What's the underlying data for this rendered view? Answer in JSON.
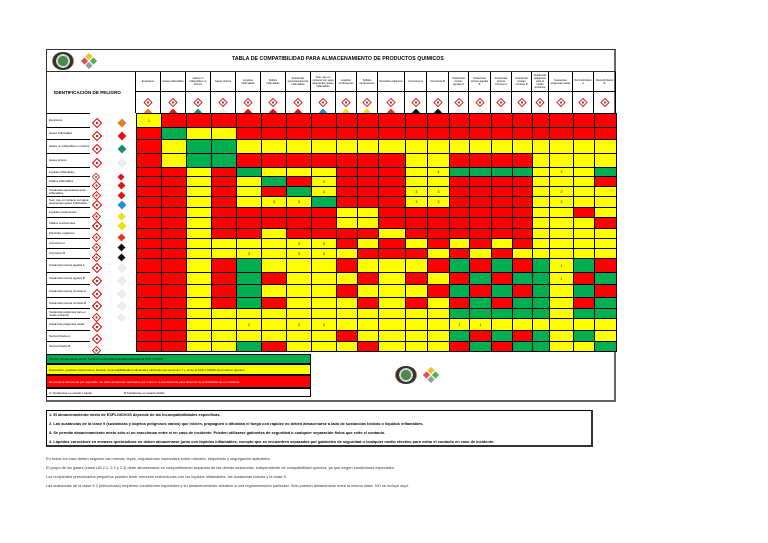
{
  "title": "TABLA DE COMPATIBILIDAD PARA ALMACENAMIENTO DE PRODUCTOS QUIMICOS",
  "header_label": "IDENTIFICACIÓN DE PELIGRO",
  "colors": {
    "R": "#ff0000",
    "Y": "#ffff00",
    "G": "#00b050"
  },
  "classes": [
    {
      "label": "Explosivos",
      "ghs": "exploding-bomb",
      "un": "orange"
    },
    {
      "label": "Gases inflamables",
      "ghs": "flame",
      "un": "red"
    },
    {
      "label": "Gases no inflamables no tóxicos",
      "ghs": "gas-cylinder",
      "un": "green"
    },
    {
      "label": "Gases tóxicos",
      "ghs": "skull",
      "un": "white"
    },
    {
      "label": "Líquidos inflamables",
      "ghs": "flame",
      "un": "red"
    },
    {
      "label": "Sólidos inflamables",
      "ghs": "flame",
      "un": "red-white"
    },
    {
      "label": "Sustancias espontáneamente inflamables",
      "ghs": "flame",
      "un": "white-red"
    },
    {
      "label": "Sust. que en contacto con agua desprenden gases inflamables",
      "ghs": "flame",
      "un": "blue"
    },
    {
      "label": "Líquidos comburentes",
      "ghs": "flame-over-circle",
      "un": "yellow"
    },
    {
      "label": "Sólidos comburentes",
      "ghs": "flame-over-circle",
      "un": "yellow"
    },
    {
      "label": "Peróxidos orgánicos",
      "ghs": "flame",
      "un": "red-yellow"
    },
    {
      "label": "Corrosivos A",
      "ghs": "corrosion",
      "un": "black-white"
    },
    {
      "label": "Corrosivos B",
      "ghs": "corrosion",
      "un": "black-white"
    },
    {
      "label": "Sustancias tóxicas agudas A",
      "ghs": "skull",
      "un": "white"
    },
    {
      "label": "Sustancias tóxicas agudas B",
      "ghs": "skull",
      "un": "white"
    },
    {
      "label": "Sustancias tóxicas crónicas A",
      "ghs": "health-hazard",
      "un": "white"
    },
    {
      "label": "Sustancias tóxicas crónicas B",
      "ghs": "health-hazard",
      "un": "white"
    },
    {
      "label": "Sustancias peligrosas para el medio ambiente",
      "ghs": "environment",
      "un": "environment"
    },
    {
      "label": "Sustancias peligrosas varias",
      "ghs": "class9",
      "un": "none"
    },
    {
      "label": "Nocivo/irritante A",
      "ghs": "exclamation",
      "un": "none"
    },
    {
      "label": "Nocivo/irritante B",
      "ghs": "exclamation",
      "un": "none"
    }
  ],
  "matrix": [
    [
      "Y1",
      "R",
      "R",
      "R",
      "R",
      "R",
      "R",
      "R",
      "R",
      "R",
      "R",
      "R",
      "R",
      "R",
      "R",
      "R",
      "R",
      "R",
      "R",
      "R",
      "R"
    ],
    [
      "R",
      "G",
      "Y",
      "Y",
      "R",
      "R",
      "R",
      "R",
      "R",
      "R",
      "R",
      "R",
      "R",
      "R",
      "R",
      "R",
      "R",
      "R",
      "R",
      "R",
      "R"
    ],
    [
      "R",
      "Y",
      "G",
      "G",
      "Y",
      "Y",
      "Y",
      "Y",
      "Y",
      "Y",
      "Y",
      "Y",
      "Y",
      "Y",
      "Y",
      "Y",
      "Y",
      "Y",
      "Y",
      "Y",
      "Y"
    ],
    [
      "R",
      "Y",
      "G",
      "G",
      "R",
      "R",
      "R",
      "R",
      "R",
      "R",
      "R",
      "Y",
      "Y",
      "R",
      "R",
      "R",
      "R",
      "Y",
      "Y",
      "Y",
      "Y"
    ],
    [
      "R",
      "R",
      "Y",
      "R",
      "G",
      "Y",
      "Y",
      "Y",
      "R",
      "R",
      "R",
      "Y",
      "Y4",
      "G",
      "G",
      "G",
      "G",
      "Y",
      "Y2",
      "Y",
      "G"
    ],
    [
      "R",
      "R",
      "Y",
      "R",
      "Y",
      "G",
      "R",
      "Y2",
      "R",
      "R",
      "R",
      "Y",
      "Y",
      "R",
      "R",
      "R",
      "R",
      "Y",
      "Y",
      "Y",
      "R"
    ],
    [
      "R",
      "R",
      "Y",
      "R",
      "Y",
      "R",
      "G",
      "Y2",
      "R",
      "R",
      "R",
      "Y3",
      "Y3",
      "R",
      "R",
      "R",
      "R",
      "Y",
      "Y2",
      "Y",
      "Y"
    ],
    [
      "R",
      "R",
      "Y",
      "R",
      "Y",
      "Y3",
      "Y3",
      "G",
      "R",
      "R",
      "R",
      "Y3",
      "Y3",
      "R",
      "R",
      "R",
      "R",
      "Y",
      "Y2",
      "Y",
      "Y"
    ],
    [
      "R",
      "R",
      "Y",
      "R",
      "R",
      "R",
      "R",
      "R",
      "Y",
      "Y",
      "R",
      "R",
      "R",
      "R",
      "R",
      "R",
      "R",
      "Y",
      "Y",
      "R",
      "Y"
    ],
    [
      "R",
      "R",
      "Y",
      "R",
      "R",
      "R",
      "R",
      "R",
      "Y",
      "Y",
      "R",
      "R",
      "R",
      "R",
      "R",
      "R",
      "R",
      "Y",
      "Y",
      "Y",
      "R"
    ],
    [
      "R",
      "R",
      "Y",
      "R",
      "R",
      "Y",
      "R",
      "R",
      "R",
      "R",
      "Y",
      "R",
      "R",
      "R",
      "R",
      "R",
      "R",
      "Y",
      "Y",
      "Y",
      "Y"
    ],
    [
      "R",
      "R",
      "Y",
      "Y",
      "Y",
      "Y",
      "Y3",
      "Y3",
      "R",
      "Y",
      "R",
      "Y",
      "R",
      "Y",
      "R",
      "Y",
      "R",
      "Y",
      "Y",
      "Y",
      "Y"
    ],
    [
      "R",
      "R",
      "Y",
      "Y",
      "Y3",
      "Y",
      "Y3",
      "Y3",
      "Y",
      "R",
      "R",
      "R",
      "Y",
      "R",
      "Y",
      "R",
      "Y",
      "Y",
      "Y",
      "Y",
      "Y"
    ],
    [
      "R",
      "R",
      "Y",
      "R",
      "G",
      "Y",
      "Y",
      "Y",
      "R",
      "Y",
      "Y",
      "Y",
      "R",
      "G",
      "R",
      "G",
      "R",
      "G",
      "Y1",
      "G",
      "R"
    ],
    [
      "R",
      "R",
      "Y",
      "R",
      "G",
      "R",
      "Y",
      "Y",
      "Y",
      "R",
      "Y",
      "R",
      "Y",
      "R",
      "G",
      "R",
      "G",
      "G",
      "Y1",
      "R",
      "G"
    ],
    [
      "R",
      "R",
      "Y",
      "R",
      "G",
      "Y",
      "Y",
      "Y",
      "R",
      "Y",
      "Y",
      "Y",
      "R",
      "G",
      "R",
      "G",
      "R",
      "G",
      "Y",
      "G",
      "R"
    ],
    [
      "R",
      "R",
      "Y",
      "R",
      "G",
      "R",
      "Y",
      "Y",
      "Y",
      "R",
      "Y",
      "R",
      "Y",
      "R",
      "G",
      "R",
      "G",
      "G",
      "Y",
      "R",
      "G"
    ],
    [
      "R",
      "R",
      "Y",
      "Y",
      "Y",
      "Y",
      "Y",
      "Y",
      "Y",
      "Y",
      "Y",
      "Y",
      "Y",
      "G",
      "G",
      "G",
      "G",
      "G",
      "Y",
      "G",
      "G"
    ],
    [
      "R",
      "R",
      "Y",
      "Y",
      "Y2",
      "Y",
      "Y3",
      "Y3",
      "Y",
      "Y",
      "Y",
      "Y",
      "Y",
      "Y1",
      "Y1",
      "Y",
      "Y",
      "Y",
      "Y",
      "Y",
      "Y"
    ],
    [
      "R",
      "R",
      "Y",
      "Y",
      "Y",
      "Y",
      "Y",
      "Y",
      "R",
      "Y",
      "Y",
      "Y",
      "Y",
      "G",
      "R",
      "G",
      "R",
      "G",
      "Y",
      "G",
      "Y"
    ],
    [
      "R",
      "R",
      "Y",
      "Y",
      "G",
      "R",
      "Y",
      "Y",
      "Y",
      "R",
      "Y",
      "Y",
      "Y",
      "R",
      "G",
      "R",
      "G",
      "G",
      "Y",
      "Y",
      "G"
    ]
  ],
  "legend": {
    "green": "Pueden almacenarse juntas. Verificar reactividad individual utilizando la FDS o MSDS",
    "yellow": "Precaución, posibles restricciones. Revisar incompatibilidades individuales utilizando las secciones 7 y 10 de la FDS o MSDS del producto químico",
    "red": "Se requiere almacenar por separado. Se debe almacenar separados por muros o a una distancia para disminuir la probabilidad de un incidente",
    "a_liquid": "A: Sustancias en estado Líquido",
    "b_solid": "B:Sustancias en estado Sólido"
  },
  "notes": [
    "1. El almacenamiento mixto de EXPLOSIVOS depende de las incompatibilidades específicas.",
    "2. Las sustancias de la clase 9 (sustancias y objetos peligrosos varios) que inicien, propaguen o difundan el fuego con rapidez no deben almacenarse a lado de sustancias tóxicas o líquidos inflamables.",
    "3. Se permite almacenamiento mixto sólo si no reaccionan entre sí en caso de incidente. Pueden utilizarse gabinetes de seguridad o cualquier separación física que evite el contacto.",
    "4. Líquidos corrosivos en envases quebradizos no deben almacenarse junto con líquidos inflamables, excepto que se encuentren separados por gabinetes de seguridad o cualquier medio efectivo para evitar el contacto en caso de incidente."
  ],
  "footer": [
    "En todos los caso deben seguirse las normas, leyes, regulaciones nacionales sobre rotulado, etiquetado y segregación aplicables.",
    "El grupo de los gases (clase UN 2.1; 2.2 y 2.3) debe almacenarse en compartimiento separado de las demás sustancias, independiente de compatibilidad química, ya que exigen condiciones especiales.",
    "Los recipientes presurizados pequeños pueden tener menores restricciones con los líquidos inflamables, las sustancias tóxicas y la clase 9.",
    "Las sustancias de la clase 6.2 (infecciosas) requieren condiciones especiales y su almacenamiento obedece a una reglamentación particular. Sólo pueden almacenarse entre la misma clase. NO se incluye aquí."
  ]
}
